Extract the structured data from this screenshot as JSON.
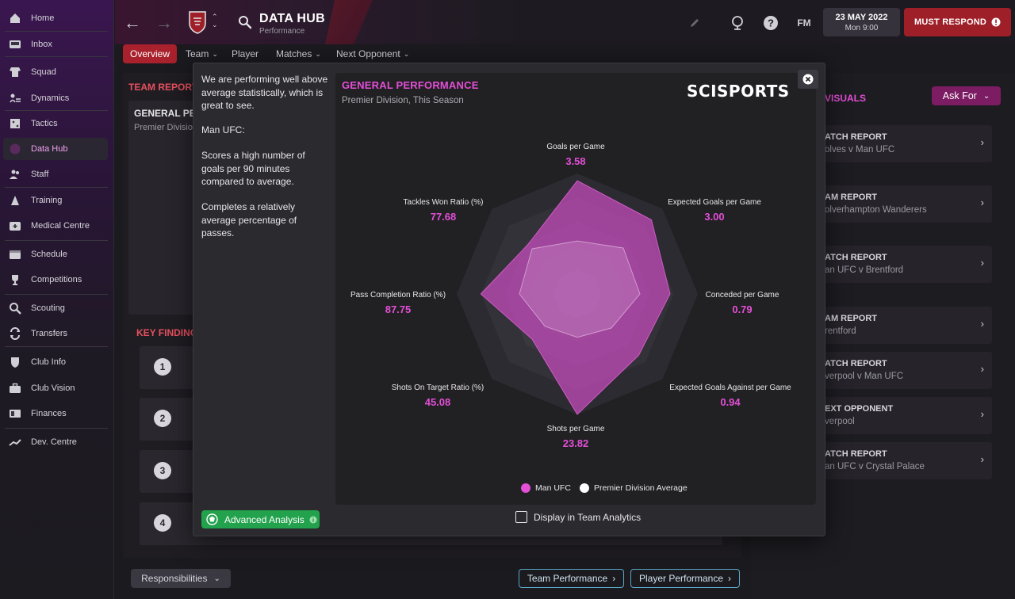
{
  "colors": {
    "accent_red": "#a8212c",
    "accent_pink": "#e34fd6",
    "team_series": "#c84bbf",
    "average_series": "#ffffff",
    "success": "#22a24c"
  },
  "sidebar": {
    "items": [
      {
        "label": "Home",
        "icon": "home-icon"
      },
      {
        "label": "Inbox",
        "icon": "inbox-icon"
      },
      {
        "label": "Squad",
        "icon": "shirt-icon"
      },
      {
        "label": "Dynamics",
        "icon": "dynamics-icon"
      },
      {
        "label": "Tactics",
        "icon": "tactics-icon"
      },
      {
        "label": "Data Hub",
        "icon": "data-hub-icon",
        "active": true
      },
      {
        "label": "Staff",
        "icon": "staff-icon"
      },
      {
        "label": "Training",
        "icon": "training-icon"
      },
      {
        "label": "Medical Centre",
        "icon": "medical-icon"
      },
      {
        "label": "Schedule",
        "icon": "calendar-icon"
      },
      {
        "label": "Competitions",
        "icon": "trophy-icon"
      },
      {
        "label": "Scouting",
        "icon": "scouting-icon"
      },
      {
        "label": "Transfers",
        "icon": "transfers-icon"
      },
      {
        "label": "Club Info",
        "icon": "shield-icon"
      },
      {
        "label": "Club Vision",
        "icon": "briefcase-icon"
      },
      {
        "label": "Finances",
        "icon": "finances-icon"
      },
      {
        "label": "Dev. Centre",
        "icon": "dev-centre-icon"
      }
    ]
  },
  "header": {
    "title": "DATA HUB",
    "subtitle": "Performance",
    "fm_label": "FM",
    "date": "23 MAY 2022",
    "time": "Mon 9:00",
    "respond_label": "MUST RESPOND"
  },
  "tabs": [
    {
      "label": "Overview",
      "active": true
    },
    {
      "label": "Team",
      "dropdown": true
    },
    {
      "label": "Player",
      "dropdown": false
    },
    {
      "label": "Matches",
      "dropdown": true
    },
    {
      "label": "Next Opponent",
      "dropdown": true
    }
  ],
  "background": {
    "team_report_heading": "TEAM REPORT",
    "general_heading": "GENERAL PE",
    "general_sub": "Premier Divisio",
    "key_findings_heading": "KEY FINDING",
    "key_numbers": [
      "1",
      "2",
      "3",
      "4"
    ],
    "visuals_heading": "VISUALS",
    "ask_for_label": "Ask For",
    "right_cards": [
      {
        "title": "ATCH REPORT",
        "sub": "olves v Man UFC"
      },
      {
        "title": "AM REPORT",
        "sub": "olverhampton Wanderers"
      },
      {
        "title": "ATCH REPORT",
        "sub": "an UFC v Brentford"
      },
      {
        "title": "AM REPORT",
        "sub": "rentford"
      },
      {
        "title": "ATCH REPORT",
        "sub": "verpool v Man UFC"
      },
      {
        "title": "EXT OPPONENT",
        "sub": "verpool"
      },
      {
        "title": "ATCH REPORT",
        "sub": "an UFC v Crystal Palace"
      }
    ],
    "responsibilities_label": "Responsibilities",
    "team_performance_label": "Team Performance",
    "player_performance_label": "Player Performance"
  },
  "modal": {
    "info_paragraphs": [
      "We are performing well above average statistically, which is great to see.",
      "Man UFC:",
      "Scores a high number of goals per 90 minutes compared to average.",
      "Completes a relatively average percentage of passes."
    ],
    "advanced_analysis_label": "Advanced Analysis",
    "display_in_team_analytics_label": "Display in Team Analytics",
    "logo_text": "SCISPORTS"
  },
  "chart_data": {
    "type": "radar",
    "title": "GENERAL PERFORMANCE",
    "subtitle": "Premier Division, This Season",
    "axes": [
      {
        "label": "Goals per Game",
        "value": "3.58"
      },
      {
        "label": "Expected Goals per Game",
        "value": "3.00"
      },
      {
        "label": "Conceded per Game",
        "value": "0.79"
      },
      {
        "label": "Expected Goals Against per Game",
        "value": "0.94"
      },
      {
        "label": "Shots per Game",
        "value": "23.82"
      },
      {
        "label": "Shots On Target Ratio (%)",
        "value": "45.08"
      },
      {
        "label": "Pass Completion Ratio (%)",
        "value": "87.75"
      },
      {
        "label": "Tackles Won Ratio (%)",
        "value": "77.68"
      }
    ],
    "series": [
      {
        "name": "Man UFC",
        "relative": [
          0.94,
          0.87,
          0.77,
          0.72,
          1.0,
          0.53,
          0.8,
          0.58
        ]
      },
      {
        "name": "Premier Division Average",
        "relative": [
          0.44,
          0.54,
          0.52,
          0.4,
          0.36,
          0.38,
          0.48,
          0.53
        ]
      }
    ],
    "rings": 5,
    "legend": "bottom"
  }
}
